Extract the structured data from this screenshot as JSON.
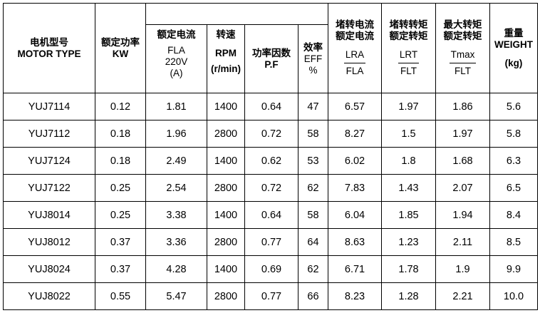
{
  "headers": {
    "model": {
      "cn": "电机型号",
      "en": "MOTOR TYPE"
    },
    "power": {
      "cn": "额定功率",
      "en": "KW"
    },
    "current": {
      "cn": "额定电流",
      "l1": "FLA",
      "l2": "220V",
      "l3": "(A)"
    },
    "speed": {
      "cn": "转速",
      "l1": "RPM",
      "l2": "(r/min)"
    },
    "pf": {
      "cn": "功率因数",
      "en": "P.F"
    },
    "eff": {
      "cn": "效率",
      "l1": "EFF",
      "l2": "%"
    },
    "lra": {
      "cn1": "堵转电流",
      "cn2": "额定电流",
      "num": "LRA",
      "den": "FLA"
    },
    "lrt": {
      "cn1": "堵转转矩",
      "cn2": "额定转矩",
      "num": "LRT",
      "den": "FLT"
    },
    "tmax": {
      "cn1": "最大转矩",
      "cn2": "额定转矩",
      "num": "Tmax",
      "den": "FLT"
    },
    "weight": {
      "cn": "重量",
      "en": "WEIGHT",
      "unit": "(kg)"
    }
  },
  "rows": [
    {
      "model": "YUJ7114",
      "kw": "0.12",
      "fla": "1.81",
      "rpm": "1400",
      "pf": "0.64",
      "eff": "47",
      "lra": "6.57",
      "lrt": "1.97",
      "tmax": "1.86",
      "weight": "5.6"
    },
    {
      "model": "YUJ7112",
      "kw": "0.18",
      "fla": "1.96",
      "rpm": "2800",
      "pf": "0.72",
      "eff": "58",
      "lra": "8.27",
      "lrt": "1.5",
      "tmax": "1.97",
      "weight": "5.8"
    },
    {
      "model": "YUJ7124",
      "kw": "0.18",
      "fla": "2.49",
      "rpm": "1400",
      "pf": "0.62",
      "eff": "53",
      "lra": "6.02",
      "lrt": "1.8",
      "tmax": "1.68",
      "weight": "6.3"
    },
    {
      "model": "YUJ7122",
      "kw": "0.25",
      "fla": "2.54",
      "rpm": "2800",
      "pf": "0.72",
      "eff": "62",
      "lra": "7.83",
      "lrt": "1.43",
      "tmax": "2.07",
      "weight": "6.5"
    },
    {
      "model": "YUJ8014",
      "kw": "0.25",
      "fla": "3.38",
      "rpm": "1400",
      "pf": "0.64",
      "eff": "58",
      "lra": "6.04",
      "lrt": "1.85",
      "tmax": "1.94",
      "weight": "8.4"
    },
    {
      "model": "YUJ8012",
      "kw": "0.37",
      "fla": "3.36",
      "rpm": "2800",
      "pf": "0.77",
      "eff": "64",
      "lra": "8.63",
      "lrt": "1.23",
      "tmax": "2.11",
      "weight": "8.5"
    },
    {
      "model": "YUJ8024",
      "kw": "0.37",
      "fla": "4.28",
      "rpm": "1400",
      "pf": "0.69",
      "eff": "62",
      "lra": "6.71",
      "lrt": "1.78",
      "tmax": "1.9",
      "weight": "9.9"
    },
    {
      "model": "YUJ8022",
      "kw": "0.55",
      "fla": "5.47",
      "rpm": "2800",
      "pf": "0.77",
      "eff": "66",
      "lra": "8.23",
      "lrt": "1.28",
      "tmax": "2.21",
      "weight": "10.0"
    }
  ]
}
